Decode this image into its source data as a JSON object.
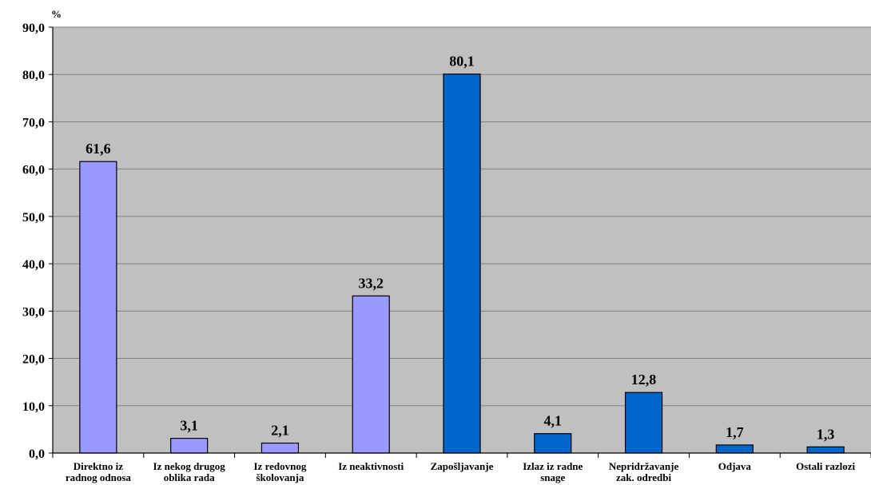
{
  "chart_data": {
    "type": "bar",
    "unit_label": "%",
    "ylim": [
      0,
      90
    ],
    "y_ticks": [
      "0,0",
      "10,0",
      "20,0",
      "30,0",
      "40,0",
      "50,0",
      "60,0",
      "70,0",
      "80,0",
      "90,0"
    ],
    "grid": true,
    "categories": [
      [
        "Direktno iz",
        "radnog odnosa"
      ],
      [
        "Iz nekog drugog",
        "oblika rada"
      ],
      [
        "Iz redovnog",
        "školovanja"
      ],
      [
        "Iz neaktivnosti"
      ],
      [
        "Zapošljavanje"
      ],
      [
        "Izlaz iz radne",
        "snage"
      ],
      [
        "Nepridržavanje",
        "zak. odredbi"
      ],
      [
        "Odjava"
      ],
      [
        "Ostali razlozi"
      ]
    ],
    "values": [
      61.6,
      3.1,
      2.1,
      33.2,
      80.1,
      4.1,
      12.8,
      1.7,
      1.3
    ],
    "value_labels": [
      "61,6",
      "3,1",
      "2,1",
      "33,2",
      "80,1",
      "4,1",
      "12,8",
      "1,7",
      "1,3"
    ],
    "bar_colors": [
      "#9999ff",
      "#9999ff",
      "#9999ff",
      "#9999ff",
      "#0066cc",
      "#0066cc",
      "#0066cc",
      "#0066cc",
      "#0066cc"
    ],
    "plot_background": "#c0c0c0",
    "gridline_color": "#808080"
  }
}
